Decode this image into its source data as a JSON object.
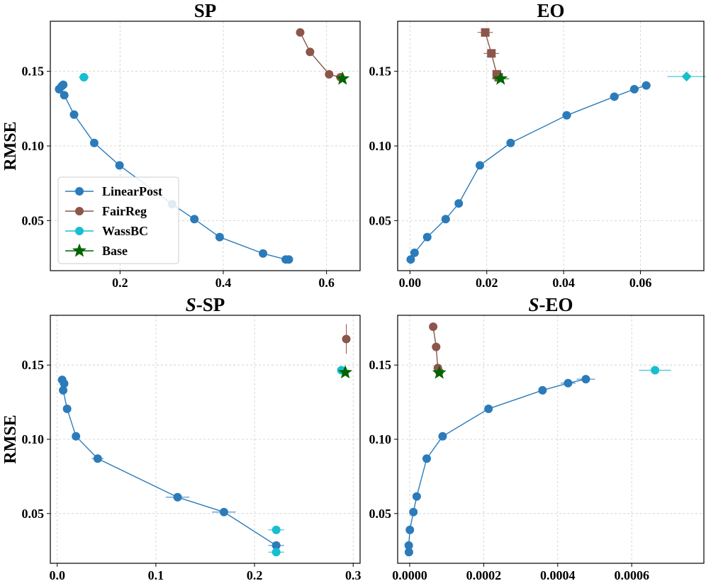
{
  "series_styles": {
    "LinearPost": {
      "color": "#2b7bba",
      "marker": "circle"
    },
    "FairReg": {
      "color": "#8c564b"
    },
    "WassBC": {
      "color": "#17becf",
      "marker": "circle"
    },
    "Base": {
      "color": "#006400",
      "marker": "star"
    }
  },
  "legend": {
    "entries": [
      "LinearPost",
      "FairReg",
      "WassBC",
      "Base"
    ],
    "location": "lower-left of first panel"
  },
  "chart_data": [
    {
      "type": "scatter",
      "title": "SP",
      "title_italic_prefix": "",
      "xlabel": "",
      "ylabel": "RMSE",
      "xlim": [
        0.065,
        0.665
      ],
      "ylim": [
        0.0165,
        0.1835
      ],
      "xticks": [
        0.2,
        0.4,
        0.6
      ],
      "xtick_labels": [
        "0.2",
        "0.4",
        "0.6"
      ],
      "yticks": [
        0.05,
        0.1,
        0.15
      ],
      "ytick_labels": [
        "0.05",
        "0.10",
        "0.15"
      ],
      "series": [
        {
          "name": "LinearPost",
          "line": true,
          "marker": "circle",
          "points": [
            [
              0.09,
              0.141
            ],
            [
              0.087,
              0.14
            ],
            [
              0.082,
              0.138
            ],
            [
              0.092,
              0.134
            ],
            [
              0.111,
              0.121
            ],
            [
              0.15,
              0.102
            ],
            [
              0.199,
              0.087
            ],
            [
              0.301,
              0.061
            ],
            [
              0.344,
              0.051
            ],
            [
              0.393,
              0.039
            ],
            [
              0.477,
              0.028
            ],
            [
              0.521,
              0.024
            ],
            [
              0.527,
              0.024
            ]
          ],
          "xerr": [
            0.004,
            0.004,
            0.004,
            0.004,
            0.004,
            0.005,
            0.006,
            0.006,
            0.006,
            0.006,
            0.006,
            0.006,
            0.006
          ]
        },
        {
          "name": "FairReg",
          "line": true,
          "marker": "circle",
          "points": [
            [
              0.549,
              0.176
            ],
            [
              0.568,
              0.163
            ],
            [
              0.605,
              0.148
            ],
            [
              0.627,
              0.146
            ]
          ],
          "xerr": [
            0.006,
            0.008,
            0.008,
            0.006
          ]
        },
        {
          "name": "WassBC",
          "line": false,
          "marker": "circle",
          "points": [
            [
              0.13,
              0.146
            ]
          ],
          "xerr": [
            0.01
          ]
        },
        {
          "name": "Base",
          "line": false,
          "marker": "star",
          "points": [
            [
              0.631,
              0.145
            ]
          ],
          "xerr": [
            0.006
          ]
        }
      ]
    },
    {
      "type": "scatter",
      "title": "EO",
      "title_italic_prefix": "",
      "xlabel": "",
      "ylabel": "",
      "xlim": [
        -0.0032,
        0.0765
      ],
      "ylim": [
        0.0165,
        0.1835
      ],
      "xticks": [
        0.0,
        0.02,
        0.04,
        0.06
      ],
      "xtick_labels": [
        "0.00",
        "0.02",
        "0.04",
        "0.06"
      ],
      "yticks": [
        0.05,
        0.1,
        0.15
      ],
      "ytick_labels": [
        "0.05",
        "0.10",
        "0.15"
      ],
      "series": [
        {
          "name": "LinearPost",
          "line": true,
          "marker": "circle",
          "points": [
            [
              0.0615,
              0.1405
            ],
            [
              0.0584,
              0.138
            ],
            [
              0.0532,
              0.133
            ],
            [
              0.0408,
              0.1205
            ],
            [
              0.0262,
              0.102
            ],
            [
              0.0182,
              0.087
            ],
            [
              0.0127,
              0.0615
            ],
            [
              0.0093,
              0.051
            ],
            [
              0.0045,
              0.039
            ],
            [
              0.0012,
              0.0285
            ],
            [
              0.0002,
              0.024
            ]
          ],
          "xerr": [
            0.0012,
            0.0012,
            0.0012,
            0.0012,
            0.001,
            0.001,
            0.0008,
            0.0008,
            0.0006,
            0.0006,
            0.0006
          ]
        },
        {
          "name": "FairReg",
          "line": true,
          "marker": "square",
          "points": [
            [
              0.0196,
              0.176
            ],
            [
              0.0212,
              0.162
            ],
            [
              0.0226,
              0.148
            ],
            [
              0.0231,
              0.146
            ]
          ],
          "xerr": [
            0.002,
            0.002,
            0.0012,
            0.001
          ]
        },
        {
          "name": "WassBC",
          "line": false,
          "marker": "diamond",
          "points": [
            [
              0.072,
              0.1465
            ]
          ],
          "xerr": [
            0.005
          ]
        },
        {
          "name": "Base",
          "line": false,
          "marker": "star",
          "points": [
            [
              0.0236,
              0.145
            ]
          ],
          "xerr": [
            0.0022
          ]
        }
      ]
    },
    {
      "type": "scatter",
      "title": "-SP",
      "title_italic_prefix": "S",
      "xlabel": "",
      "ylabel": "RMSE",
      "xlim": [
        -0.007,
        0.307
      ],
      "ylim": [
        0.0165,
        0.1835
      ],
      "xticks": [
        0.0,
        0.1,
        0.2,
        0.3
      ],
      "xtick_labels": [
        "0.0",
        "0.1",
        "0.2",
        "0.3"
      ],
      "yticks": [
        0.05,
        0.1,
        0.15
      ],
      "ytick_labels": [
        "0.05",
        "0.10",
        "0.15"
      ],
      "series": [
        {
          "name": "LinearPost",
          "line": true,
          "marker": "circle",
          "points": [
            [
              0.005,
              0.14
            ],
            [
              0.007,
              0.1375
            ],
            [
              0.006,
              0.133
            ],
            [
              0.01,
              0.1205
            ],
            [
              0.019,
              0.102
            ],
            [
              0.041,
              0.087
            ],
            [
              0.122,
              0.061
            ],
            [
              0.169,
              0.051
            ],
            [
              0.222,
              0.0285
            ]
          ],
          "xerr": [
            0.002,
            0.002,
            0.002,
            0.002,
            0.003,
            0.006,
            0.012,
            0.012,
            0.008
          ]
        },
        {
          "name": "WassBC",
          "line": false,
          "marker": "circle",
          "points": [
            [
              0.288,
              0.1465
            ],
            [
              0.222,
              0.039
            ],
            [
              0.222,
              0.024
            ]
          ],
          "xerr": [
            0.003,
            0.008,
            0.008
          ]
        },
        {
          "name": "FairReg",
          "line": false,
          "marker": "circle",
          "points": [
            [
              0.293,
              0.1675
            ]
          ],
          "xerr": [
            0.0
          ],
          "yerr": [
            0.01
          ]
        },
        {
          "name": "Base",
          "line": false,
          "marker": "star",
          "points": [
            [
              0.292,
              0.145
            ]
          ],
          "xerr": [
            0.003
          ]
        }
      ]
    },
    {
      "type": "scatter",
      "title": "-EO",
      "title_italic_prefix": "S",
      "xlabel": "",
      "ylabel": "",
      "xlim": [
        -3.25e-05,
        0.000795
      ],
      "ylim": [
        0.0165,
        0.1835
      ],
      "xticks": [
        0.0,
        0.0002,
        0.0004,
        0.0006
      ],
      "xtick_labels": [
        "0.0000",
        "0.0002",
        "0.0004",
        "0.0006"
      ],
      "yticks": [
        0.05,
        0.1,
        0.15
      ],
      "ytick_labels": [
        "0.05",
        "0.10",
        "0.15"
      ],
      "series": [
        {
          "name": "LinearPost",
          "line": true,
          "marker": "circle",
          "points": [
            [
              0.000476,
              0.1405
            ],
            [
              0.000428,
              0.1378
            ],
            [
              0.000359,
              0.133
            ],
            [
              0.000213,
              0.1205
            ],
            [
              8.9e-05,
              0.102
            ],
            [
              4.6e-05,
              0.087
            ],
            [
              1.9e-05,
              0.0615
            ],
            [
              1e-05,
              0.051
            ],
            [
              5e-07,
              0.039
            ],
            [
              -2.5e-06,
              0.0285
            ],
            [
              -2e-06,
              0.024
            ]
          ],
          "xerr": [
            2.5e-05,
            2e-05,
            1e-05,
            8e-06,
            6e-06,
            5e-06,
            5e-06,
            4e-06,
            4e-06,
            4e-06,
            4e-06
          ]
        },
        {
          "name": "FairReg",
          "line": true,
          "marker": "circle",
          "points": [
            [
              6.35e-05,
              0.1758
            ],
            [
              7.15e-05,
              0.1622
            ],
            [
              7.6e-05,
              0.148
            ],
            [
              8e-05,
              0.1455
            ]
          ],
          "xerr": [
            8e-06,
            5e-06,
            4e-06,
            4e-06
          ]
        },
        {
          "name": "WassBC",
          "line": false,
          "marker": "circle",
          "points": [
            [
              0.000663,
              0.1465
            ]
          ],
          "xerr": [
            4.3e-05
          ]
        },
        {
          "name": "Base",
          "line": false,
          "marker": "star",
          "points": [
            [
              8e-05,
              0.1448
            ]
          ],
          "xerr": [
            8e-06
          ]
        }
      ]
    }
  ]
}
